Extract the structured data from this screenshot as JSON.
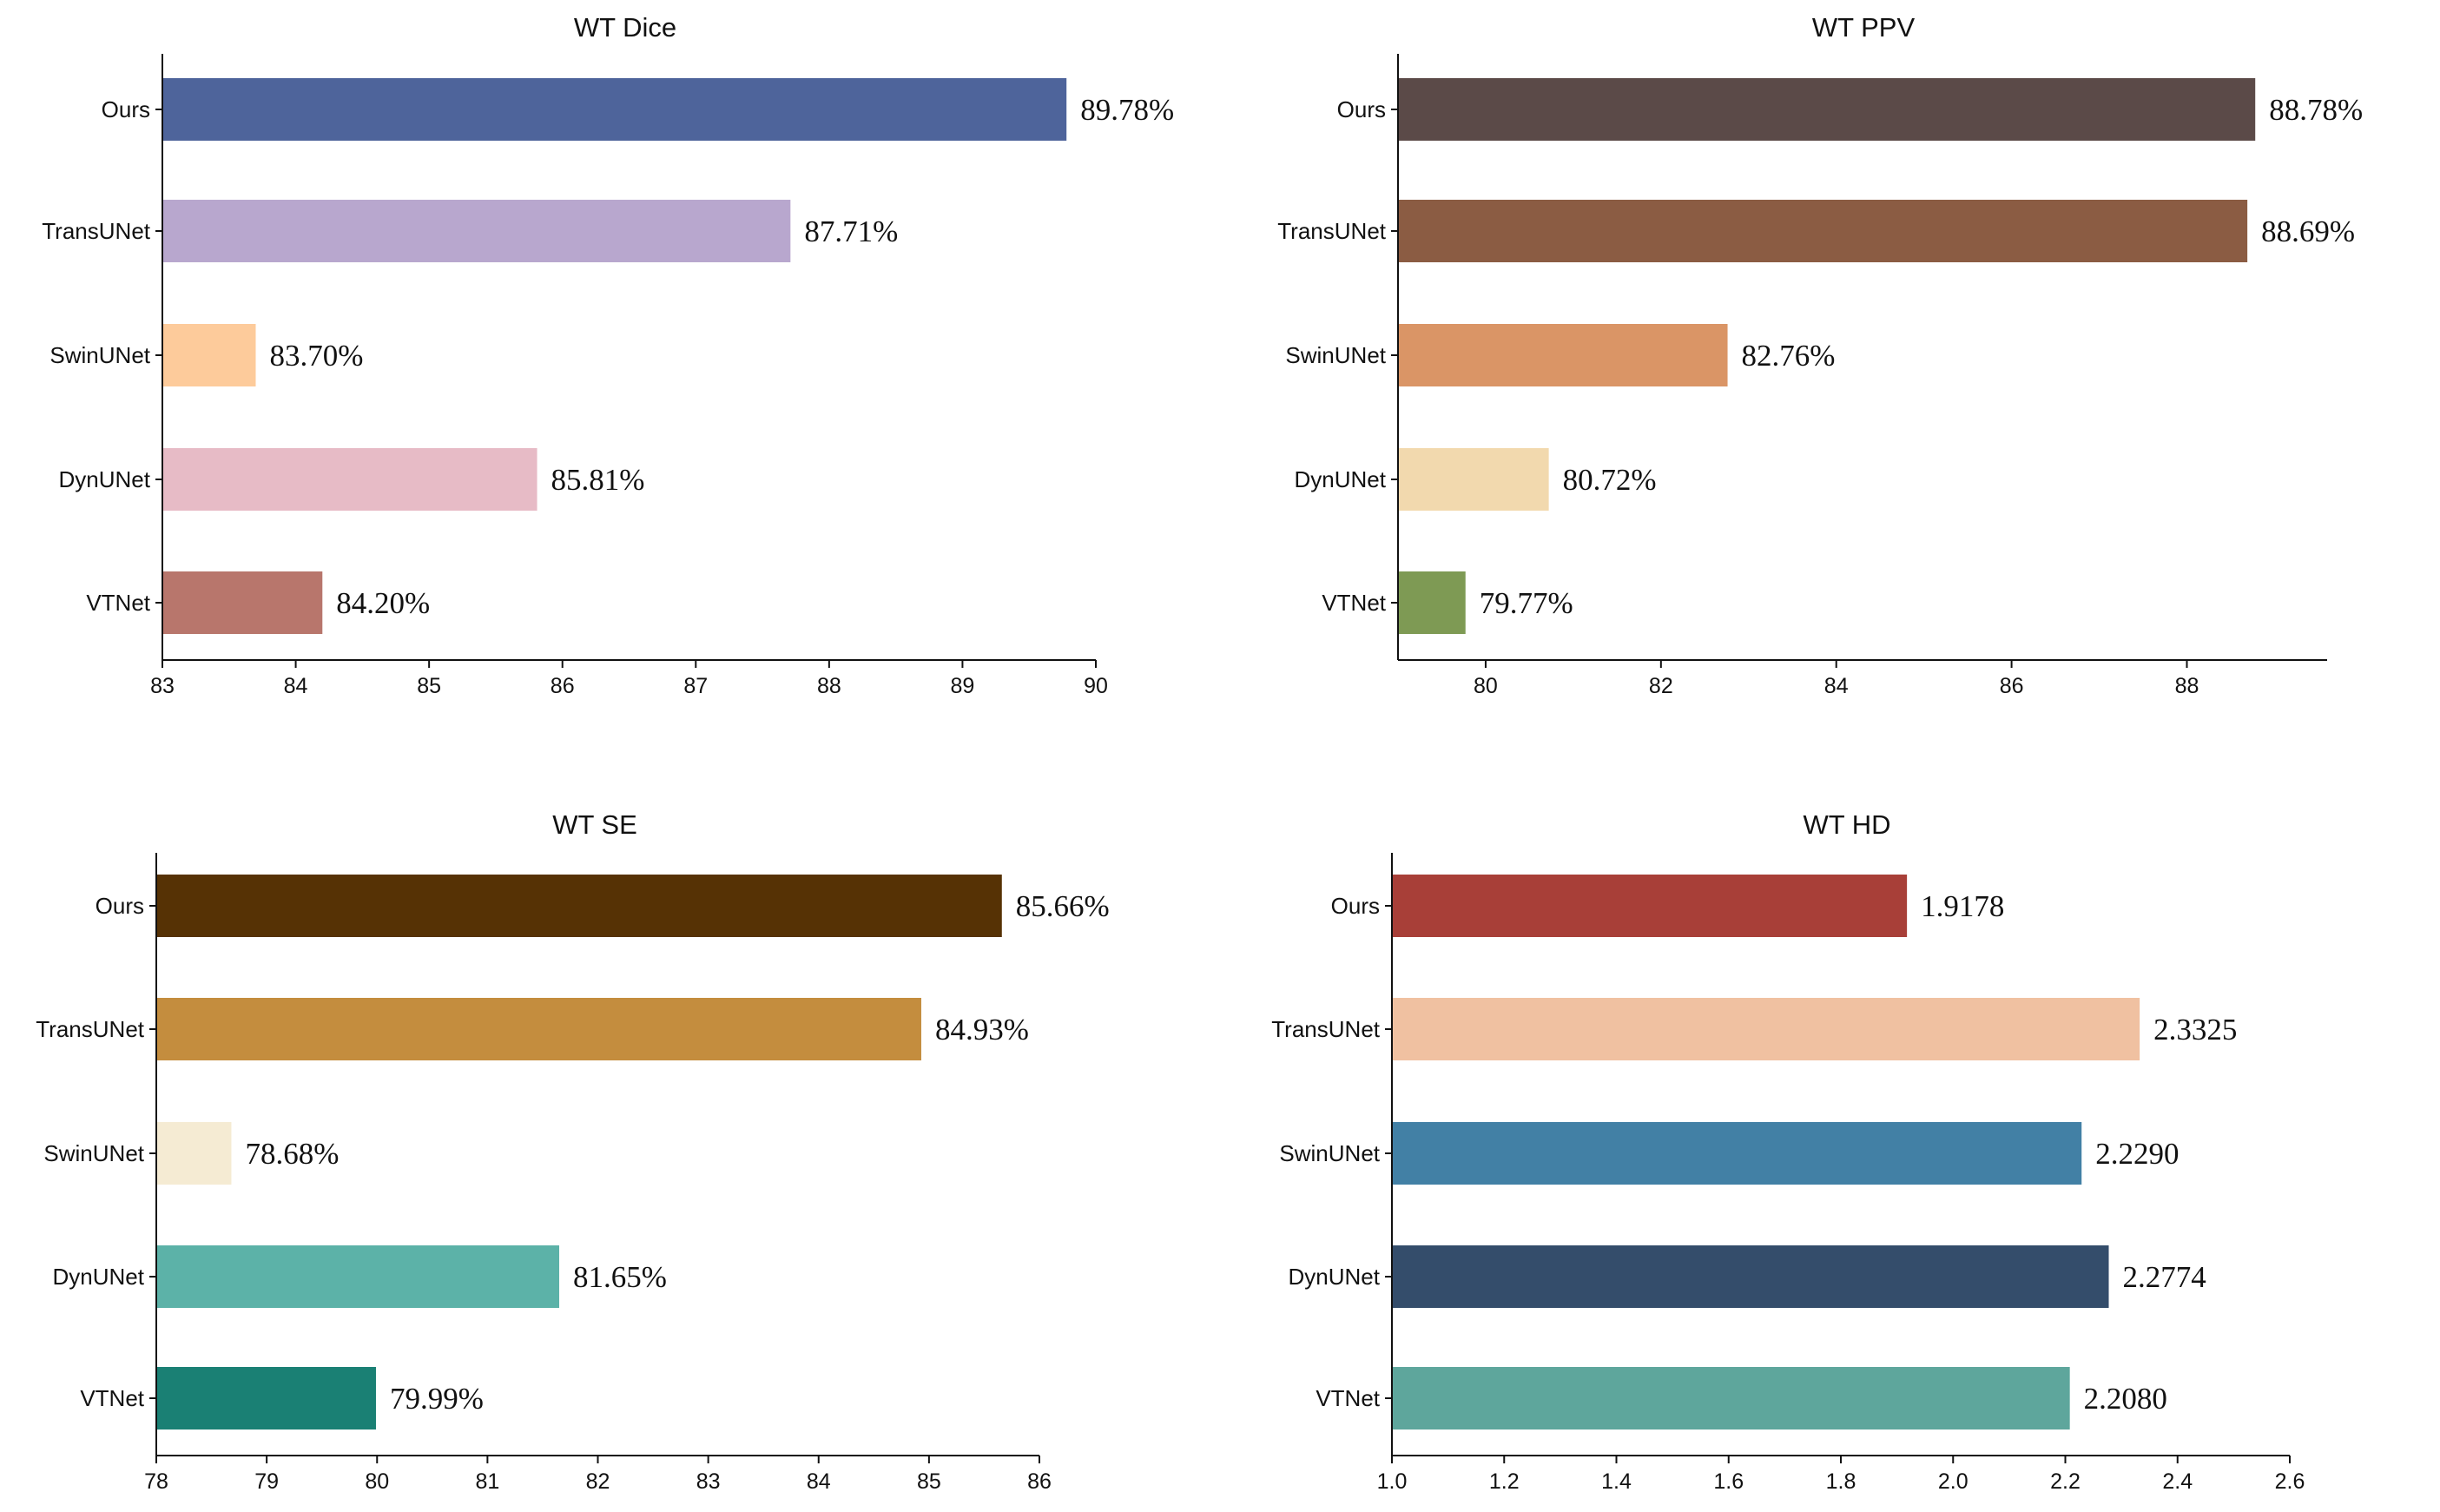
{
  "chart_data": [
    {
      "type": "bar",
      "orientation": "horizontal",
      "title": "WT  Dice",
      "categories": [
        "Ours",
        "TransUNet",
        "SwinUNet",
        "DynUNet",
        "VTNet"
      ],
      "values": [
        89.78,
        87.71,
        83.7,
        85.81,
        84.2
      ],
      "value_labels": [
        "89.78%",
        "87.71%",
        "83.70%",
        "85.81%",
        "84.20%"
      ],
      "colors": [
        "#4E649B",
        "#B8A7CE",
        "#FDCB9B",
        "#E7BBC6",
        "#B8766C"
      ],
      "xlim": [
        83,
        90
      ],
      "xticks": [
        83,
        84,
        85,
        86,
        87,
        88,
        89,
        90
      ],
      "xtick_labels": [
        "83",
        "84",
        "85",
        "86",
        "87",
        "88",
        "89",
        "90"
      ]
    },
    {
      "type": "bar",
      "orientation": "horizontal",
      "title": "WT  PPV",
      "categories": [
        "Ours",
        "TransUNet",
        "SwinUNet",
        "DynUNet",
        "VTNet"
      ],
      "values": [
        88.78,
        88.69,
        82.76,
        80.72,
        79.77
      ],
      "value_labels": [
        "88.78%",
        "88.69%",
        "82.76%",
        "80.72%",
        "79.77%"
      ],
      "colors": [
        "#5B4A48",
        "#8B5C43",
        "#DA9566",
        "#F2D9AE",
        "#7E9A54"
      ],
      "xlim": [
        79.0,
        89.6
      ],
      "xticks": [
        80,
        82,
        84,
        86,
        88
      ],
      "xtick_labels": [
        "80",
        "82",
        "84",
        "86",
        "88"
      ]
    },
    {
      "type": "bar",
      "orientation": "horizontal",
      "title": "WT  SE",
      "categories": [
        "Ours",
        "TransUNet",
        "SwinUNet",
        "DynUNet",
        "VTNet"
      ],
      "values": [
        85.66,
        84.93,
        78.68,
        81.65,
        79.99
      ],
      "value_labels": [
        "85.66%",
        "84.93%",
        "78.68%",
        "81.65%",
        "79.99%"
      ],
      "colors": [
        "#563205",
        "#C48D3E",
        "#F5EBD3",
        "#5CB2A8",
        "#1A8074"
      ],
      "xlim": [
        78,
        86
      ],
      "xticks": [
        78,
        79,
        80,
        81,
        82,
        83,
        84,
        85,
        86
      ],
      "xtick_labels": [
        "78",
        "79",
        "80",
        "81",
        "82",
        "83",
        "84",
        "85",
        "86"
      ]
    },
    {
      "type": "bar",
      "orientation": "horizontal",
      "title": "WT   HD",
      "categories": [
        "Ours",
        "TransUNet",
        "SwinUNet",
        "DynUNet",
        "VTNet"
      ],
      "values": [
        1.9178,
        2.3325,
        2.229,
        2.2774,
        2.208
      ],
      "value_labels": [
        "1.9178",
        "2.3325",
        "2.2290",
        "2.2774",
        "2.2080"
      ],
      "colors": [
        "#A83F38",
        "#F0C1A1",
        "#4280A5",
        "#344D6B",
        "#5EA69C"
      ],
      "xlim": [
        1.0,
        2.6
      ],
      "xticks": [
        1.0,
        1.2,
        1.4,
        1.6,
        1.8,
        2.0,
        2.2,
        2.4,
        2.6
      ],
      "xtick_labels": [
        "1.0",
        "1.2",
        "1.4",
        "1.6",
        "1.8",
        "2.0",
        "2.2",
        "2.4",
        "2.6"
      ]
    }
  ]
}
